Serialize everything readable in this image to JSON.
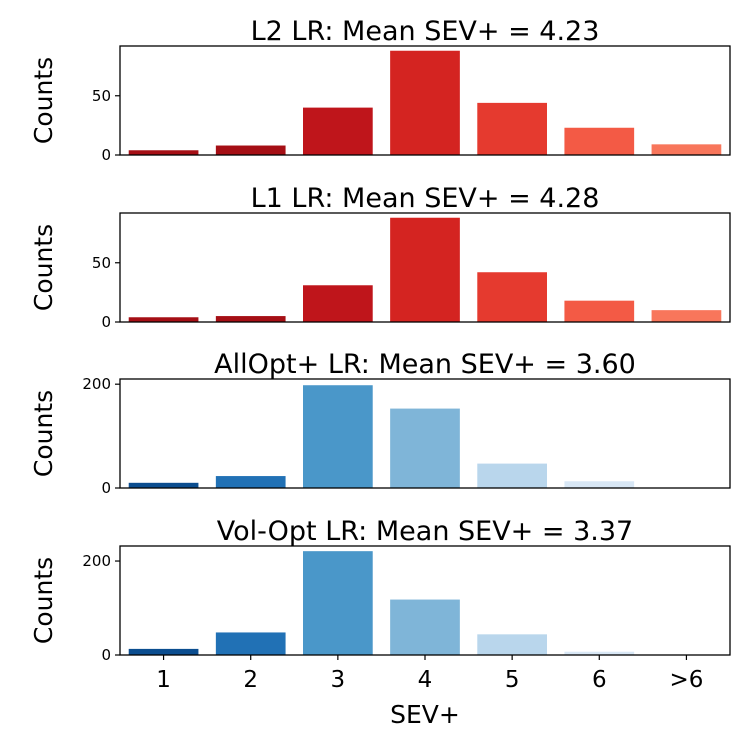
{
  "chart_data": [
    {
      "type": "bar",
      "title": "L2 LR: Mean SEV+ = 4.23",
      "ylabel": "Counts",
      "categories": [
        "1",
        "2",
        "3",
        "4",
        "5",
        "6",
        ">6"
      ],
      "values": [
        4,
        8,
        40,
        88,
        44,
        23,
        9
      ],
      "ylim": [
        0,
        92
      ],
      "yticks": [
        0,
        50
      ],
      "colors": [
        "#a50f15",
        "#a50f15",
        "#bf151b",
        "#d42421",
        "#e53a2f",
        "#f35a45",
        "#f8765b"
      ]
    },
    {
      "type": "bar",
      "title": "L1 LR: Mean SEV+ = 4.28",
      "ylabel": "Counts",
      "categories": [
        "1",
        "2",
        "3",
        "4",
        "5",
        "6",
        ">6"
      ],
      "values": [
        4,
        5,
        31,
        88,
        42,
        18,
        10
      ],
      "ylim": [
        0,
        92
      ],
      "yticks": [
        0,
        50
      ],
      "colors": [
        "#a50f15",
        "#a50f15",
        "#bf151b",
        "#d42421",
        "#e53a2f",
        "#f35a45",
        "#f8765b"
      ]
    },
    {
      "type": "bar",
      "title": "AllOpt+ LR: Mean SEV+ = 3.60",
      "ylabel": "Counts",
      "categories": [
        "1",
        "2",
        "3",
        "4",
        "5",
        "6",
        ">6"
      ],
      "values": [
        10,
        23,
        198,
        153,
        47,
        13,
        1
      ],
      "ylim": [
        0,
        210
      ],
      "yticks": [
        0,
        200
      ],
      "colors": [
        "#0b4d8f",
        "#2171b5",
        "#4a97c9",
        "#7fb5d8",
        "#b9d6ec",
        "#d8e7f5",
        "#eef4fb"
      ]
    },
    {
      "type": "bar",
      "title": "Vol-Opt LR: Mean SEV+ = 3.37",
      "ylabel": "Counts",
      "categories": [
        "1",
        "2",
        "3",
        "4",
        "5",
        "6",
        ">6"
      ],
      "values": [
        13,
        48,
        221,
        118,
        44,
        7,
        1
      ],
      "ylim": [
        0,
        232
      ],
      "yticks": [
        0,
        200
      ],
      "colors": [
        "#0b4d8f",
        "#2171b5",
        "#4a97c9",
        "#7fb5d8",
        "#b9d6ec",
        "#d8e7f5",
        "#eef4fb"
      ]
    }
  ],
  "xlabel": "SEV+"
}
